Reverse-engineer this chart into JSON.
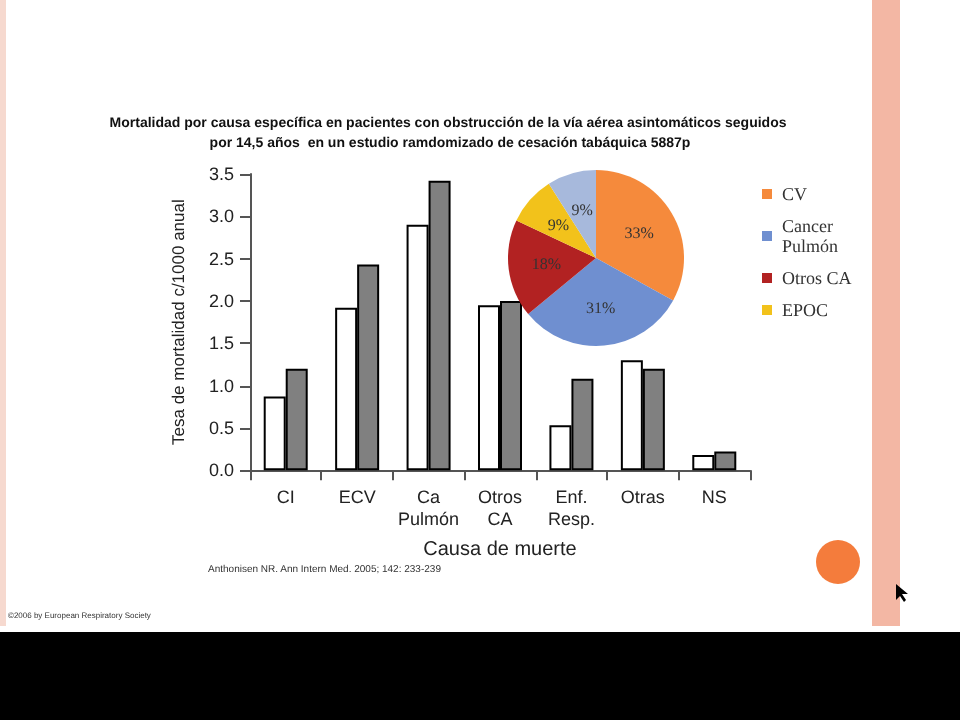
{
  "chart_data": [
    {
      "type": "bar",
      "title": "Mortalidad por causa específica en pacientes con obstrucción de la vía aérea asintomáticos seguidos por 14,5 años  en un estudio ramdomizado de cesación tabáquica 5887p",
      "categories": [
        "CI",
        "ECV",
        "Ca Pulmón",
        "Otros CA",
        "Enf. Resp.",
        "Otras",
        "NS"
      ],
      "series": [
        {
          "color": "#ffffff",
          "values": [
            0.87,
            1.92,
            2.9,
            1.95,
            0.53,
            1.3,
            0.18
          ]
        },
        {
          "color": "#808080",
          "values": [
            1.2,
            2.43,
            3.42,
            2.0,
            1.08,
            1.2,
            0.22
          ]
        }
      ],
      "xlabel": "Causa de muerte",
      "ylabel": "Tesa de mortalidad c/1000 anual",
      "ylim": [
        0,
        3.5
      ],
      "yticks": [
        {
          "value": 0,
          "label": "0.0"
        },
        {
          "value": 0.5,
          "label": "0.5"
        },
        {
          "value": 1,
          "label": "1.0"
        },
        {
          "value": 1.5,
          "label": "1.5"
        },
        {
          "value": 2,
          "label": "2.0"
        },
        {
          "value": 2.5,
          "label": "2.5"
        },
        {
          "value": 3,
          "label": "3.0"
        },
        {
          "value": 3.5,
          "label": "3.5"
        }
      ],
      "grid": false,
      "annotations": [
        "Anthonisen NR. Ann Intern Med. 2005; 142: 233-239",
        "©2006 by European Respiratory Society"
      ]
    },
    {
      "type": "pie",
      "categories": [
        "CV",
        "Cancer Pulmón",
        "Otros CA",
        "EPOC",
        null
      ],
      "values": [
        33,
        31,
        18,
        9,
        9
      ],
      "colors": [
        "#f58a3c",
        "#6f8fd0",
        "#b22222",
        "#f2c21b",
        "#a7b9dc"
      ],
      "value_labels": [
        "33%",
        "31%",
        "18%",
        "9%",
        "9%"
      ],
      "legend": "right"
    }
  ]
}
